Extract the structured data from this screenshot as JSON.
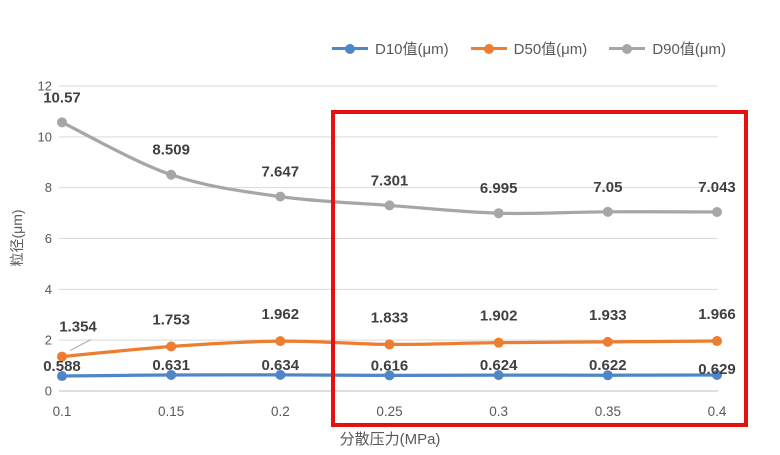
{
  "chart_data": {
    "type": "line",
    "title": "",
    "x_tick_labels": [
      "0.1",
      "0.15",
      "0.2",
      "0.25",
      "0.3",
      "0.35",
      "0.4"
    ],
    "xlabel": "分散压力(MPa)",
    "ylabel": "粒径(μm)",
    "ylim": [
      0,
      12
    ],
    "y_ticks": [
      0,
      2,
      4,
      6,
      8,
      10,
      12
    ],
    "grid": true,
    "legend_position": "top",
    "series": [
      {
        "name": "D10值(μm)",
        "color": "#4E86C8",
        "values": [
          0.588,
          0.631,
          0.634,
          0.616,
          0.624,
          0.622,
          0.629
        ],
        "labels": [
          "0.588",
          "0.631",
          "0.634",
          "0.616",
          "0.624",
          "0.622",
          "0.629"
        ],
        "label_dy": -10,
        "label_overrides": {
          "6": {
            "dy": -6
          }
        }
      },
      {
        "name": "D50值(μm)",
        "color": "#ED7D31",
        "values": [
          1.354,
          1.753,
          1.962,
          1.833,
          1.902,
          1.933,
          1.966
        ],
        "labels": [
          "1.354",
          "1.753",
          "1.962",
          "1.833",
          "1.902",
          "1.933",
          "1.966"
        ],
        "label_dy": -27,
        "label_overrides": {
          "0": {
            "dx": 16,
            "dy": -30,
            "leader": true
          }
        }
      },
      {
        "name": "D90值(μm)",
        "color": "#A6A6A6",
        "values": [
          10.57,
          8.509,
          7.647,
          7.301,
          6.995,
          7.05,
          7.043
        ],
        "labels": [
          "10.57",
          "8.509",
          "7.647",
          "7.301",
          "6.995",
          "7.05",
          "7.043"
        ],
        "label_dy": -25
      }
    ],
    "highlight": {
      "color": "#E8100C",
      "x_start_label": "0.25",
      "x_end_label": "0.4"
    }
  },
  "styles": {
    "grid_color": "#D9D9D9",
    "axis_line_color": "#BFBFBF",
    "tick_text_color": "#595959",
    "data_label_color": "#404040",
    "background": "#FFFFFF"
  }
}
